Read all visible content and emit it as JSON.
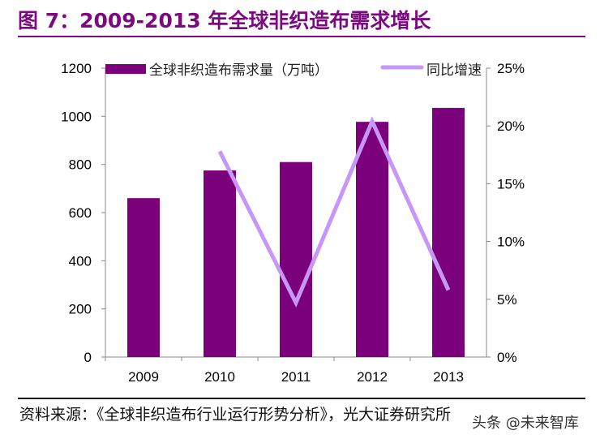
{
  "title": "图 7：2009-2013 年全球非织造布需求增长",
  "source": "资料来源：《全球非织造布行业运行形势分析》，光大证券研究所",
  "watermark": "头条 @未来智库",
  "chart_data": {
    "type": "bar+line",
    "categories": [
      "2009",
      "2010",
      "2011",
      "2012",
      "2013"
    ],
    "series": [
      {
        "name": "全球非织造布需求量（万吨）",
        "type": "bar",
        "axis": "left",
        "color": "#7b007b",
        "values": [
          660,
          775,
          810,
          977,
          1035
        ]
      },
      {
        "name": "同比增速",
        "type": "line",
        "axis": "right",
        "color": "#c797f5",
        "values": [
          null,
          17.8,
          4.7,
          20.4,
          5.8
        ]
      }
    ],
    "left_axis": {
      "ylim": [
        0,
        1200
      ],
      "ticks": [
        "0",
        "200",
        "400",
        "600",
        "800",
        "1000",
        "1200"
      ]
    },
    "right_axis": {
      "ylim": [
        0,
        25
      ],
      "ticks": [
        "0%",
        "5%",
        "10%",
        "15%",
        "20%",
        "25%"
      ]
    },
    "legend": "top",
    "grid": false
  }
}
